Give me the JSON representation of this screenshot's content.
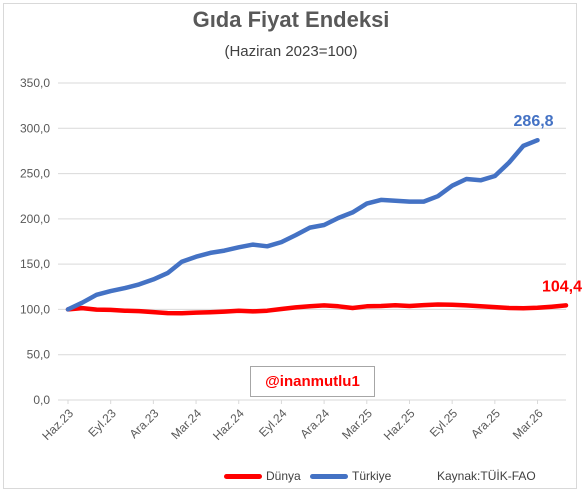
{
  "chart_data": {
    "type": "line",
    "title": "Gıda Fiyat Endeksi",
    "subtitle": "(Haziran 2023=100)",
    "ylim": [
      0,
      350
    ],
    "yticks": [
      "0,0",
      "50,0",
      "100,0",
      "150,0",
      "200,0",
      "250,0",
      "300,0",
      "350,0"
    ],
    "ytick_values": [
      0,
      50,
      100,
      150,
      200,
      250,
      300,
      350
    ],
    "x_tick_labels": [
      "Haz.23",
      "Eyl.23",
      "Ara.23",
      "Mar.24",
      "Haz.24",
      "Eyl.24",
      "Ara.24",
      "Mar.25",
      "Haz.25",
      "Eyl.25",
      "Ara.25",
      "Mar.26"
    ],
    "x_tick_every": 3,
    "grid": true,
    "legend_position": "bottom",
    "series": [
      {
        "name": "Dünya",
        "color": "#ff0000",
        "end_label": "104,4",
        "values": [
          100,
          101.5,
          99.8,
          99.5,
          98.6,
          98.2,
          97.0,
          96.0,
          95.8,
          96.5,
          96.9,
          97.6,
          98.6,
          97.8,
          98.6,
          100.5,
          102.2,
          103.6,
          104.5,
          103.5,
          101.6,
          103.4,
          103.8,
          104.6,
          103.8,
          104.8,
          105.4,
          105.2,
          104.4,
          103.6,
          102.6,
          101.6,
          101.4,
          101.8,
          103.0,
          104.4
        ]
      },
      {
        "name": "Türkiye",
        "color": "#4472c4",
        "end_label": "286,8",
        "values": [
          100,
          107.4,
          116.2,
          120.2,
          123.5,
          127.6,
          133.1,
          140.1,
          152.6,
          158.2,
          162.4,
          165.0,
          168.6,
          171.6,
          169.7,
          174.3,
          182.1,
          190.3,
          193.2,
          200.9,
          207.1,
          216.9,
          220.9,
          220.0,
          219.1,
          219.0,
          225.0,
          236.6,
          244.0,
          242.6,
          247.3,
          262.2,
          280.6,
          286.8
        ]
      }
    ],
    "watermark": "@inanmutlu1",
    "source": "Kaynak:TÜİK-FAO"
  }
}
